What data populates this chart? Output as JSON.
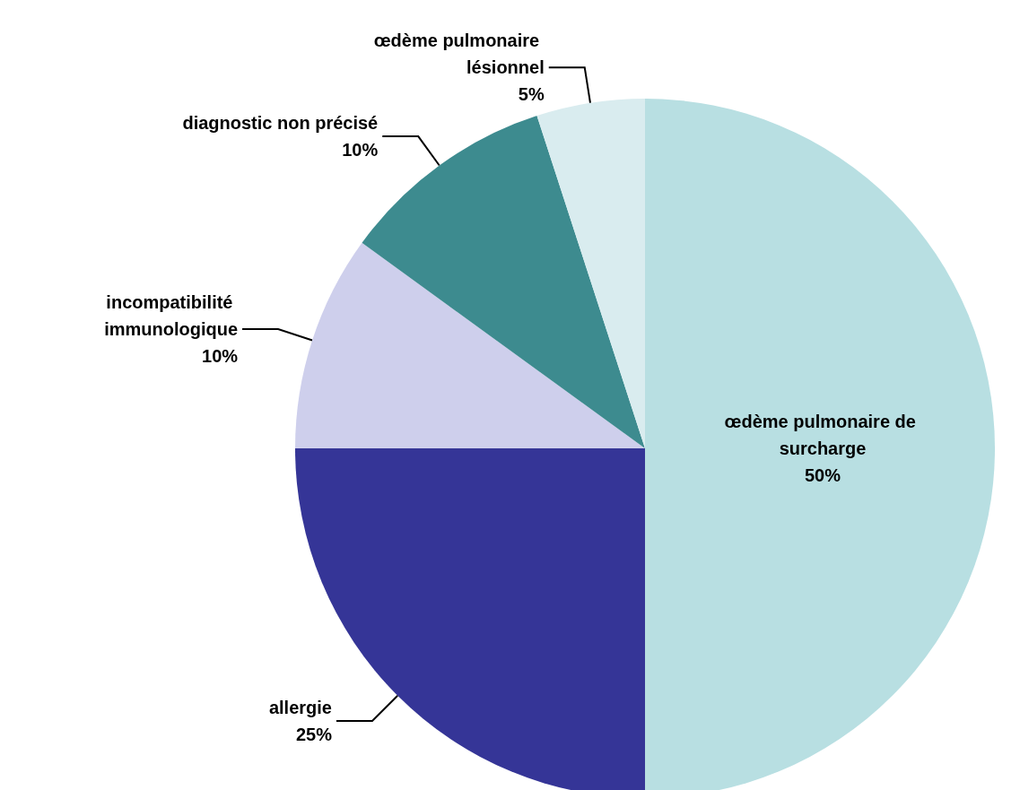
{
  "chart_data": {
    "type": "pie",
    "categories": [
      "œdème pulmonaire de surcharge",
      "allergie",
      "incompatibilité immunologique",
      "diagnostic non précisé",
      "œdème pulmonaire lésionnel"
    ],
    "values": [
      50,
      25,
      10,
      10,
      5
    ],
    "value_labels": [
      "50%",
      "25%",
      "10%",
      "10%",
      "5%"
    ],
    "colors": [
      "#b8dfe2",
      "#353597",
      "#cecfec",
      "#3d8b8f",
      "#d9ecef"
    ]
  }
}
